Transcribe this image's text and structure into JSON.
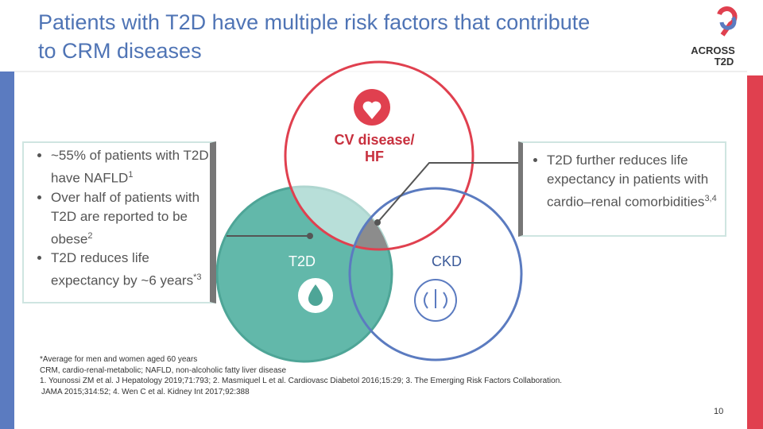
{
  "header": {
    "title": "Patients with T2D have multiple risk factors that contribute to CRM diseases",
    "logo": [
      "ACROSS",
      "T2D"
    ]
  },
  "left_box": {
    "bullets": [
      {
        "text": "~55% of patients with T2D have NAFLD",
        "sup": "1"
      },
      {
        "text": "Over half of patients with T2D are reported to be obese",
        "sup": "2"
      },
      {
        "text": "T2D reduces life expectancy by ~6 years",
        "sup": "*3"
      }
    ]
  },
  "right_box": {
    "bullets": [
      {
        "text": "T2D further reduces life expectancy in patients with cardio–renal comorbidities",
        "sup": "3,4"
      }
    ]
  },
  "venn": {
    "circles": [
      {
        "label": [
          "CV disease/",
          "HF"
        ]
      },
      {
        "label": [
          "T2D"
        ]
      },
      {
        "label": [
          "CKD"
        ]
      }
    ]
  },
  "footnotes": [
    "*Average for men and women aged 60 years",
    "CRM, cardio-renal-metabolic; NAFLD, non-alcoholic fatty liver disease",
    "1. Younossi ZM et al. J Hepatology 2019;71:793; 2. Masmiquel L et al. Cardiovasc Diabetol 2016;15:29; 3. The Emerging Risk Factors Collaboration.",
    "JAMA 2015;314:52; 4. Wen C et al. Kidney Int 2017;92:388"
  ],
  "page_number": "10"
}
